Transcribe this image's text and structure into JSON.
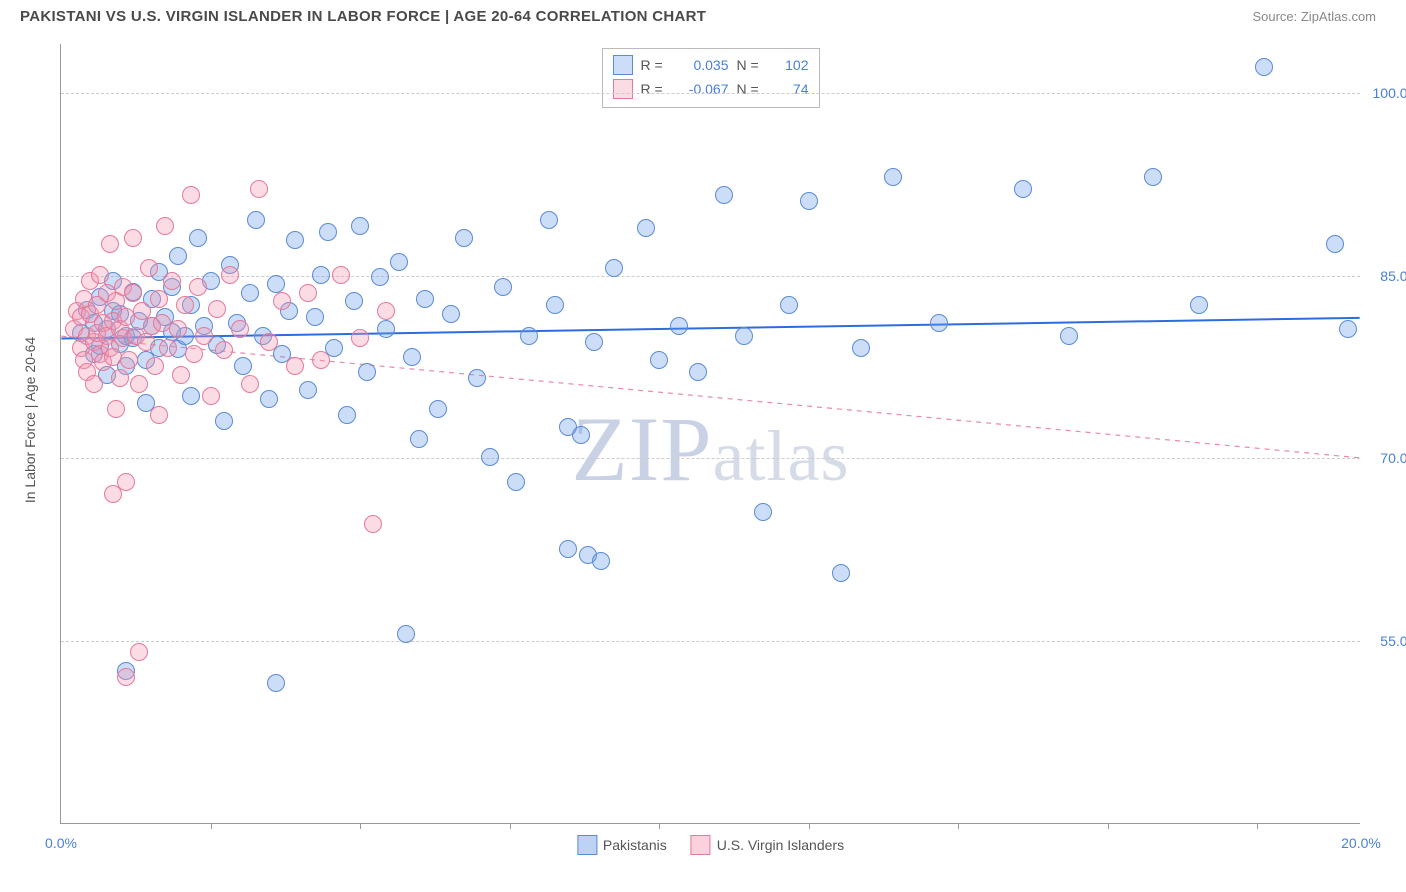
{
  "header": {
    "title": "PAKISTANI VS U.S. VIRGIN ISLANDER IN LABOR FORCE | AGE 20-64 CORRELATION CHART",
    "source": "Source: ZipAtlas.com"
  },
  "chart": {
    "type": "scatter",
    "ylabel": "In Labor Force | Age 20-64",
    "watermark": "ZIPatlas",
    "background_color": "#ffffff",
    "grid_color": "#cccccc",
    "axis_color": "#999999",
    "label_color_axis": "#4a7fd8",
    "ylabel_color": "#555555",
    "marker_radius": 9,
    "marker_border_width": 1.2,
    "xlim": [
      0.0,
      20.0
    ],
    "ylim": [
      40.0,
      104.0
    ],
    "xticks": [
      0.0,
      20.0
    ],
    "xtick_labels": [
      "0.0%",
      "20.0%"
    ],
    "xtick_minor": [
      2.3,
      4.6,
      6.9,
      9.2,
      11.5,
      13.8,
      16.1,
      18.4
    ],
    "yticks": [
      55.0,
      70.0,
      85.0,
      100.0
    ],
    "ytick_labels": [
      "55.0%",
      "70.0%",
      "85.0%",
      "100.0%"
    ],
    "series": [
      {
        "name": "Pakistanis",
        "color_fill": "rgba(109,158,235,0.35)",
        "color_border": "#5b8bd4",
        "trend": {
          "y_at_xmin": 79.8,
          "y_at_xmax": 81.5,
          "color": "#2d6cdf",
          "width": 2,
          "dash": "none"
        },
        "stats": {
          "R": "0.035",
          "N": "102"
        },
        "points": [
          [
            0.3,
            80.2
          ],
          [
            0.4,
            82.1
          ],
          [
            0.5,
            78.5
          ],
          [
            0.5,
            81.0
          ],
          [
            0.6,
            83.2
          ],
          [
            0.6,
            79.1
          ],
          [
            0.7,
            80.5
          ],
          [
            0.7,
            76.8
          ],
          [
            0.8,
            82.0
          ],
          [
            0.8,
            84.5
          ],
          [
            0.9,
            79.3
          ],
          [
            0.9,
            81.8
          ],
          [
            1.0,
            80.0
          ],
          [
            1.0,
            77.5
          ],
          [
            1.1,
            83.6
          ],
          [
            1.1,
            79.8
          ],
          [
            1.2,
            81.2
          ],
          [
            1.3,
            78.0
          ],
          [
            1.3,
            74.5
          ],
          [
            1.4,
            80.8
          ],
          [
            1.4,
            83.0
          ],
          [
            1.5,
            79.0
          ],
          [
            1.5,
            85.2
          ],
          [
            1.6,
            81.5
          ],
          [
            1.7,
            80.3
          ],
          [
            1.7,
            84.0
          ],
          [
            1.8,
            78.9
          ],
          [
            1.8,
            86.5
          ],
          [
            1.9,
            80.0
          ],
          [
            2.0,
            82.5
          ],
          [
            2.0,
            75.0
          ],
          [
            2.1,
            88.0
          ],
          [
            2.2,
            80.8
          ],
          [
            2.3,
            84.5
          ],
          [
            2.4,
            79.2
          ],
          [
            2.5,
            73.0
          ],
          [
            2.6,
            85.8
          ],
          [
            2.7,
            81.0
          ],
          [
            2.8,
            77.5
          ],
          [
            2.9,
            83.5
          ],
          [
            3.0,
            89.5
          ],
          [
            3.1,
            80.0
          ],
          [
            3.2,
            74.8
          ],
          [
            3.3,
            84.2
          ],
          [
            3.4,
            78.5
          ],
          [
            3.5,
            82.0
          ],
          [
            3.6,
            87.8
          ],
          [
            3.8,
            75.5
          ],
          [
            3.9,
            81.5
          ],
          [
            4.0,
            85.0
          ],
          [
            4.1,
            88.5
          ],
          [
            4.2,
            79.0
          ],
          [
            4.4,
            73.5
          ],
          [
            4.5,
            82.8
          ],
          [
            4.6,
            89.0
          ],
          [
            4.7,
            77.0
          ],
          [
            4.9,
            84.8
          ],
          [
            5.0,
            80.5
          ],
          [
            5.2,
            86.0
          ],
          [
            5.4,
            78.2
          ],
          [
            5.5,
            71.5
          ],
          [
            5.6,
            83.0
          ],
          [
            5.8,
            74.0
          ],
          [
            5.3,
            55.5
          ],
          [
            6.0,
            81.8
          ],
          [
            6.2,
            88.0
          ],
          [
            6.4,
            76.5
          ],
          [
            6.6,
            70.0
          ],
          [
            6.8,
            84.0
          ],
          [
            7.0,
            68.0
          ],
          [
            7.2,
            80.0
          ],
          [
            7.5,
            89.5
          ],
          [
            7.6,
            82.5
          ],
          [
            7.8,
            72.5
          ],
          [
            7.8,
            62.5
          ],
          [
            8.0,
            71.8
          ],
          [
            8.1,
            62.0
          ],
          [
            8.2,
            79.5
          ],
          [
            8.3,
            61.5
          ],
          [
            8.5,
            85.5
          ],
          [
            3.3,
            51.5
          ],
          [
            1.0,
            52.5
          ],
          [
            9.0,
            88.8
          ],
          [
            9.2,
            78.0
          ],
          [
            9.5,
            80.8
          ],
          [
            9.8,
            77.0
          ],
          [
            10.2,
            91.5
          ],
          [
            10.5,
            80.0
          ],
          [
            10.8,
            65.5
          ],
          [
            11.2,
            82.5
          ],
          [
            11.5,
            91.0
          ],
          [
            12.0,
            60.5
          ],
          [
            12.3,
            79.0
          ],
          [
            12.8,
            93.0
          ],
          [
            13.5,
            81.0
          ],
          [
            14.8,
            92.0
          ],
          [
            15.5,
            80.0
          ],
          [
            16.8,
            93.0
          ],
          [
            17.5,
            82.5
          ],
          [
            18.5,
            102.0
          ],
          [
            19.6,
            87.5
          ],
          [
            19.8,
            80.5
          ]
        ]
      },
      {
        "name": "U.S. Virgin Islanders",
        "color_fill": "rgba(244,153,179,0.35)",
        "color_border": "#e47a9a",
        "trend": {
          "y_at_xmin": 80.0,
          "y_at_xmax": 70.0,
          "color": "#e88aa5",
          "width": 1.2,
          "dash": "5 5"
        },
        "stats": {
          "R": "-0.067",
          "N": "74"
        },
        "points": [
          [
            0.2,
            80.5
          ],
          [
            0.25,
            82.0
          ],
          [
            0.3,
            79.0
          ],
          [
            0.3,
            81.5
          ],
          [
            0.35,
            78.0
          ],
          [
            0.35,
            83.0
          ],
          [
            0.4,
            80.0
          ],
          [
            0.4,
            77.0
          ],
          [
            0.45,
            81.8
          ],
          [
            0.45,
            84.5
          ],
          [
            0.5,
            79.5
          ],
          [
            0.5,
            76.0
          ],
          [
            0.55,
            82.5
          ],
          [
            0.55,
            80.2
          ],
          [
            0.6,
            78.5
          ],
          [
            0.6,
            85.0
          ],
          [
            0.65,
            81.0
          ],
          [
            0.65,
            77.8
          ],
          [
            0.7,
            83.5
          ],
          [
            0.7,
            80.0
          ],
          [
            0.75,
            79.0
          ],
          [
            0.75,
            87.5
          ],
          [
            0.8,
            81.2
          ],
          [
            0.8,
            78.2
          ],
          [
            0.85,
            74.0
          ],
          [
            0.85,
            82.8
          ],
          [
            0.9,
            80.5
          ],
          [
            0.9,
            76.5
          ],
          [
            0.95,
            84.0
          ],
          [
            0.95,
            79.8
          ],
          [
            1.0,
            81.5
          ],
          [
            1.0,
            68.0
          ],
          [
            1.05,
            78.0
          ],
          [
            1.1,
            83.5
          ],
          [
            1.1,
            88.0
          ],
          [
            1.15,
            80.0
          ],
          [
            1.2,
            76.0
          ],
          [
            1.25,
            82.0
          ],
          [
            1.3,
            79.5
          ],
          [
            1.35,
            85.5
          ],
          [
            1.4,
            80.8
          ],
          [
            1.45,
            77.5
          ],
          [
            1.5,
            83.0
          ],
          [
            1.5,
            73.5
          ],
          [
            1.55,
            81.0
          ],
          [
            1.6,
            89.0
          ],
          [
            1.65,
            79.0
          ],
          [
            1.7,
            84.5
          ],
          [
            1.8,
            80.5
          ],
          [
            1.85,
            76.8
          ],
          [
            1.9,
            82.5
          ],
          [
            2.0,
            91.5
          ],
          [
            2.05,
            78.5
          ],
          [
            2.1,
            84.0
          ],
          [
            2.2,
            80.0
          ],
          [
            2.3,
            75.0
          ],
          [
            2.4,
            82.2
          ],
          [
            2.5,
            78.8
          ],
          [
            2.6,
            85.0
          ],
          [
            2.75,
            80.5
          ],
          [
            2.9,
            76.0
          ],
          [
            3.05,
            92.0
          ],
          [
            3.2,
            79.5
          ],
          [
            3.4,
            82.8
          ],
          [
            3.6,
            77.5
          ],
          [
            3.8,
            83.5
          ],
          [
            4.0,
            78.0
          ],
          [
            4.3,
            85.0
          ],
          [
            4.6,
            79.8
          ],
          [
            5.0,
            82.0
          ],
          [
            4.8,
            64.5
          ],
          [
            1.2,
            54.0
          ],
          [
            1.0,
            52.0
          ],
          [
            0.8,
            67.0
          ]
        ]
      }
    ],
    "bottom_legend": [
      {
        "label": "Pakistanis",
        "fill": "rgba(109,158,235,0.45)",
        "border": "#5b8bd4"
      },
      {
        "label": "U.S. Virgin Islanders",
        "fill": "rgba(244,153,179,0.45)",
        "border": "#e47a9a"
      }
    ]
  }
}
